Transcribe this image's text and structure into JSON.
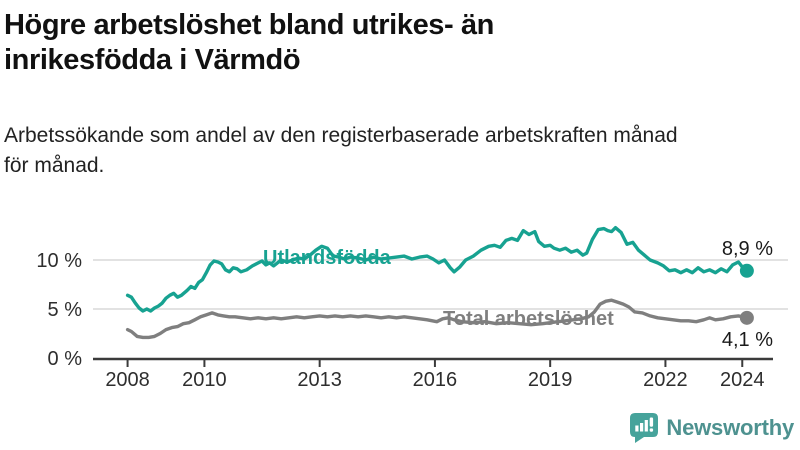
{
  "header": {
    "title": "Högre arbetslöshet bland utrikes- än\ninrikesfödda i Värmdö",
    "subtitle": "Arbetssökande som andel av den registerbaserade arbetskraften månad\nför månad."
  },
  "footer": {
    "brand": "Newsworthy",
    "logo_color": "#46a39b",
    "wordmark_color": "#4e9290"
  },
  "chart_data": {
    "type": "line",
    "title": "",
    "xlabel": "",
    "ylabel": "",
    "xlim": [
      2007.1,
      2024.8
    ],
    "ylim": [
      0,
      14
    ],
    "grid": "horizontal",
    "legend_position": "inline-labels",
    "x_ticks": [
      {
        "value": 2008,
        "label": "2008"
      },
      {
        "value": 2010,
        "label": "2010"
      },
      {
        "value": 2013,
        "label": "2013"
      },
      {
        "value": 2016,
        "label": "2016"
      },
      {
        "value": 2019,
        "label": "2019"
      },
      {
        "value": 2022,
        "label": "2022"
      },
      {
        "value": 2024,
        "label": "2024"
      }
    ],
    "y_ticks": [
      {
        "value": 0,
        "label": "0 %"
      },
      {
        "value": 5,
        "label": "5 %"
      },
      {
        "value": 10,
        "label": "10 %"
      }
    ],
    "style": {
      "grid_color": "#d9d9d9",
      "axis_color": "#3b3b3b",
      "tick_text_color": "#2e2e2e",
      "value_label_color": "#1a1a1a"
    },
    "series": [
      {
        "id": "utlandsfodda",
        "name": "Utlandsfödda",
        "color": "#17a291",
        "end_label": "8,9 %",
        "end_value": 8.9,
        "points": [
          [
            2008.0,
            6.4
          ],
          [
            2008.1,
            6.2
          ],
          [
            2008.2,
            5.6
          ],
          [
            2008.3,
            5.1
          ],
          [
            2008.4,
            4.8
          ],
          [
            2008.5,
            5.0
          ],
          [
            2008.6,
            4.8
          ],
          [
            2008.7,
            5.1
          ],
          [
            2008.8,
            5.3
          ],
          [
            2008.9,
            5.6
          ],
          [
            2009.0,
            6.1
          ],
          [
            2009.1,
            6.4
          ],
          [
            2009.2,
            6.6
          ],
          [
            2009.3,
            6.2
          ],
          [
            2009.4,
            6.4
          ],
          [
            2009.55,
            6.9
          ],
          [
            2009.65,
            7.3
          ],
          [
            2009.75,
            7.1
          ],
          [
            2009.85,
            7.7
          ],
          [
            2009.95,
            8.0
          ],
          [
            2010.05,
            8.7
          ],
          [
            2010.15,
            9.5
          ],
          [
            2010.25,
            9.9
          ],
          [
            2010.35,
            9.8
          ],
          [
            2010.45,
            9.6
          ],
          [
            2010.55,
            9.0
          ],
          [
            2010.65,
            8.8
          ],
          [
            2010.75,
            9.2
          ],
          [
            2010.85,
            9.1
          ],
          [
            2010.95,
            8.8
          ],
          [
            2011.1,
            9.0
          ],
          [
            2011.25,
            9.4
          ],
          [
            2011.4,
            9.7
          ],
          [
            2011.5,
            9.9
          ],
          [
            2011.6,
            9.5
          ],
          [
            2011.7,
            9.7
          ],
          [
            2011.8,
            9.4
          ],
          [
            2011.9,
            9.7
          ],
          [
            2012.0,
            10.0
          ],
          [
            2012.15,
            9.8
          ],
          [
            2012.3,
            10.0
          ],
          [
            2012.45,
            10.2
          ],
          [
            2012.6,
            10.1
          ],
          [
            2012.75,
            10.5
          ],
          [
            2012.9,
            11.0
          ],
          [
            2013.05,
            11.4
          ],
          [
            2013.2,
            11.2
          ],
          [
            2013.35,
            10.4
          ],
          [
            2013.5,
            10.3
          ],
          [
            2013.65,
            10.1
          ],
          [
            2013.8,
            10.3
          ],
          [
            2014.0,
            10.2
          ],
          [
            2014.2,
            10.0
          ],
          [
            2014.4,
            10.3
          ],
          [
            2014.6,
            10.1
          ],
          [
            2014.8,
            10.2
          ],
          [
            2015.0,
            10.3
          ],
          [
            2015.2,
            10.4
          ],
          [
            2015.4,
            10.1
          ],
          [
            2015.6,
            10.3
          ],
          [
            2015.8,
            10.4
          ],
          [
            2015.95,
            10.1
          ],
          [
            2016.1,
            9.7
          ],
          [
            2016.25,
            10.0
          ],
          [
            2016.4,
            9.2
          ],
          [
            2016.5,
            8.8
          ],
          [
            2016.65,
            9.3
          ],
          [
            2016.8,
            10.0
          ],
          [
            2017.0,
            10.4
          ],
          [
            2017.2,
            11.0
          ],
          [
            2017.4,
            11.4
          ],
          [
            2017.55,
            11.5
          ],
          [
            2017.7,
            11.3
          ],
          [
            2017.85,
            12.0
          ],
          [
            2018.0,
            12.2
          ],
          [
            2018.15,
            12.0
          ],
          [
            2018.3,
            13.0
          ],
          [
            2018.45,
            12.6
          ],
          [
            2018.6,
            12.9
          ],
          [
            2018.7,
            11.9
          ],
          [
            2018.85,
            11.4
          ],
          [
            2019.0,
            11.5
          ],
          [
            2019.1,
            11.2
          ],
          [
            2019.25,
            11.0
          ],
          [
            2019.4,
            11.2
          ],
          [
            2019.55,
            10.8
          ],
          [
            2019.7,
            11.0
          ],
          [
            2019.85,
            10.5
          ],
          [
            2019.95,
            10.7
          ],
          [
            2020.1,
            12.1
          ],
          [
            2020.25,
            13.1
          ],
          [
            2020.4,
            13.2
          ],
          [
            2020.5,
            13.0
          ],
          [
            2020.6,
            12.9
          ],
          [
            2020.7,
            13.3
          ],
          [
            2020.85,
            12.8
          ],
          [
            2021.0,
            11.6
          ],
          [
            2021.15,
            11.8
          ],
          [
            2021.3,
            11.0
          ],
          [
            2021.45,
            10.5
          ],
          [
            2021.6,
            10.0
          ],
          [
            2021.8,
            9.7
          ],
          [
            2021.95,
            9.4
          ],
          [
            2022.1,
            8.9
          ],
          [
            2022.25,
            9.0
          ],
          [
            2022.4,
            8.7
          ],
          [
            2022.55,
            9.0
          ],
          [
            2022.7,
            8.7
          ],
          [
            2022.85,
            9.2
          ],
          [
            2023.0,
            8.8
          ],
          [
            2023.15,
            9.0
          ],
          [
            2023.3,
            8.7
          ],
          [
            2023.45,
            9.1
          ],
          [
            2023.6,
            8.8
          ],
          [
            2023.75,
            9.5
          ],
          [
            2023.9,
            9.8
          ],
          [
            2024.0,
            9.3
          ],
          [
            2024.12,
            8.9
          ]
        ]
      },
      {
        "id": "total-arbetsloshet",
        "name": "Total arbetslöshet",
        "color": "#7f7f7f",
        "end_label": "4,1 %",
        "end_value": 4.1,
        "points": [
          [
            2008.0,
            2.9
          ],
          [
            2008.1,
            2.7
          ],
          [
            2008.25,
            2.2
          ],
          [
            2008.4,
            2.1
          ],
          [
            2008.55,
            2.1
          ],
          [
            2008.7,
            2.2
          ],
          [
            2008.85,
            2.5
          ],
          [
            2009.0,
            2.9
          ],
          [
            2009.15,
            3.1
          ],
          [
            2009.3,
            3.2
          ],
          [
            2009.45,
            3.5
          ],
          [
            2009.6,
            3.6
          ],
          [
            2009.75,
            3.9
          ],
          [
            2009.9,
            4.2
          ],
          [
            2010.05,
            4.4
          ],
          [
            2010.2,
            4.6
          ],
          [
            2010.35,
            4.4
          ],
          [
            2010.5,
            4.3
          ],
          [
            2010.65,
            4.2
          ],
          [
            2010.8,
            4.2
          ],
          [
            2011.0,
            4.1
          ],
          [
            2011.2,
            4.0
          ],
          [
            2011.4,
            4.1
          ],
          [
            2011.6,
            4.0
          ],
          [
            2011.8,
            4.1
          ],
          [
            2012.0,
            4.0
          ],
          [
            2012.2,
            4.1
          ],
          [
            2012.4,
            4.2
          ],
          [
            2012.6,
            4.1
          ],
          [
            2012.8,
            4.2
          ],
          [
            2013.0,
            4.3
          ],
          [
            2013.2,
            4.2
          ],
          [
            2013.4,
            4.3
          ],
          [
            2013.6,
            4.2
          ],
          [
            2013.8,
            4.3
          ],
          [
            2014.0,
            4.2
          ],
          [
            2014.2,
            4.3
          ],
          [
            2014.4,
            4.2
          ],
          [
            2014.6,
            4.1
          ],
          [
            2014.8,
            4.2
          ],
          [
            2015.0,
            4.1
          ],
          [
            2015.2,
            4.2
          ],
          [
            2015.4,
            4.1
          ],
          [
            2015.6,
            4.0
          ],
          [
            2015.8,
            3.9
          ],
          [
            2016.05,
            3.7
          ],
          [
            2016.2,
            4.0
          ],
          [
            2016.35,
            4.1
          ],
          [
            2016.5,
            3.9
          ],
          [
            2016.7,
            3.7
          ],
          [
            2017.0,
            3.6
          ],
          [
            2017.3,
            3.7
          ],
          [
            2017.6,
            3.5
          ],
          [
            2017.9,
            3.6
          ],
          [
            2018.2,
            3.5
          ],
          [
            2018.5,
            3.4
          ],
          [
            2018.8,
            3.5
          ],
          [
            2019.0,
            3.6
          ],
          [
            2019.2,
            3.7
          ],
          [
            2019.4,
            3.8
          ],
          [
            2019.6,
            3.9
          ],
          [
            2019.8,
            4.0
          ],
          [
            2020.0,
            4.2
          ],
          [
            2020.15,
            4.7
          ],
          [
            2020.3,
            5.5
          ],
          [
            2020.45,
            5.8
          ],
          [
            2020.6,
            5.9
          ],
          [
            2020.75,
            5.7
          ],
          [
            2020.9,
            5.5
          ],
          [
            2021.05,
            5.2
          ],
          [
            2021.2,
            4.7
          ],
          [
            2021.4,
            4.6
          ],
          [
            2021.6,
            4.3
          ],
          [
            2021.8,
            4.1
          ],
          [
            2022.0,
            4.0
          ],
          [
            2022.2,
            3.9
          ],
          [
            2022.4,
            3.8
          ],
          [
            2022.6,
            3.8
          ],
          [
            2022.8,
            3.7
          ],
          [
            2023.0,
            3.9
          ],
          [
            2023.15,
            4.1
          ],
          [
            2023.3,
            3.9
          ],
          [
            2023.5,
            4.0
          ],
          [
            2023.7,
            4.2
          ],
          [
            2023.9,
            4.3
          ],
          [
            2024.0,
            4.2
          ],
          [
            2024.12,
            4.1
          ]
        ]
      }
    ]
  }
}
